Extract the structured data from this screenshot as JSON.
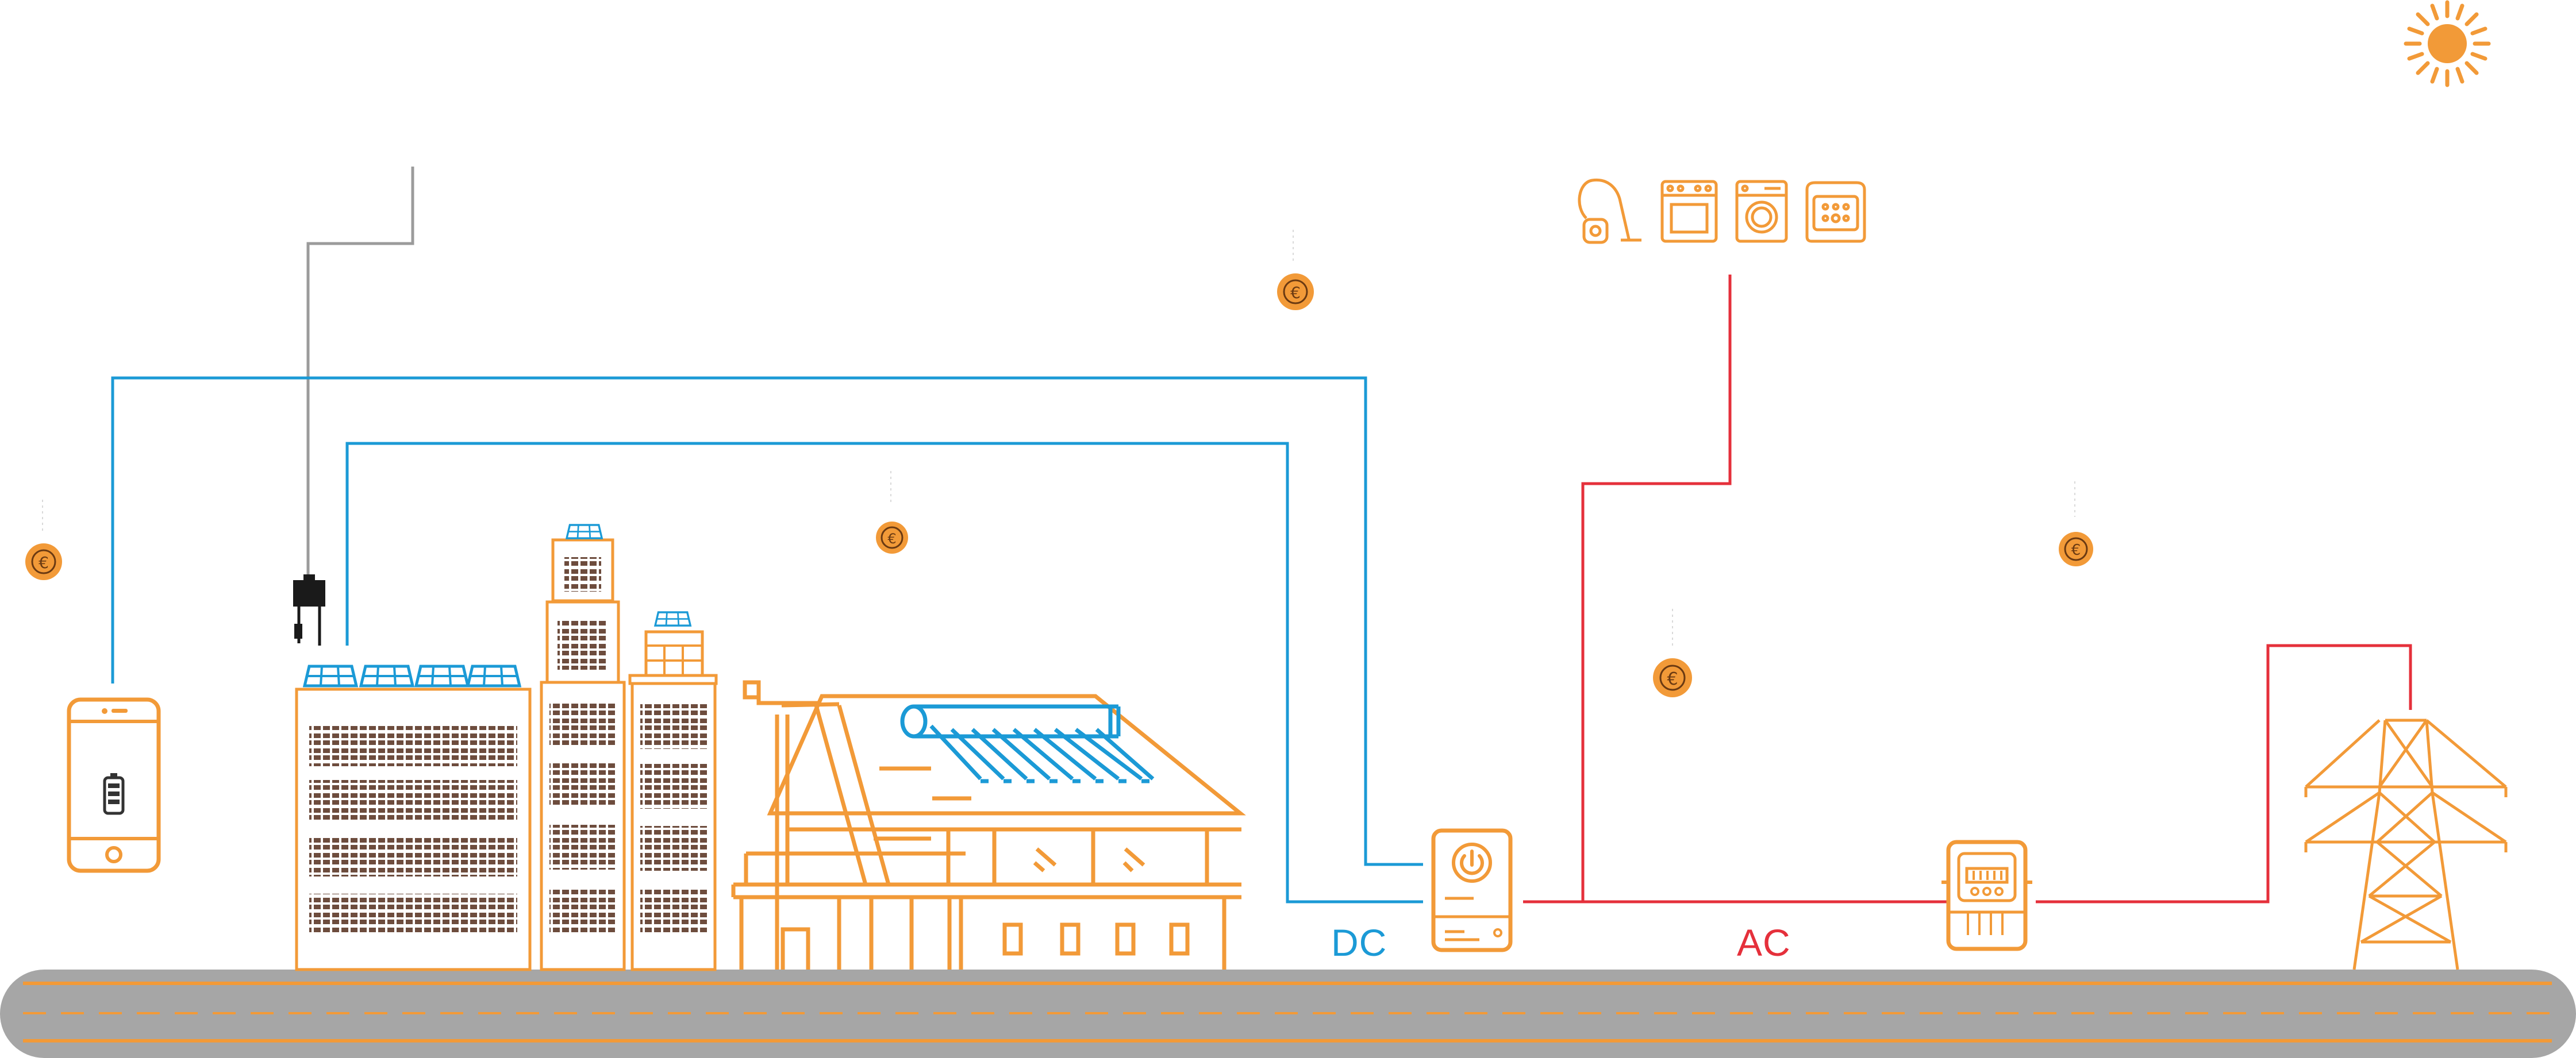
{
  "labels": {
    "dc": "DC",
    "ac": "AC"
  },
  "currency_symbol": "€",
  "colors": {
    "orange": "#f29a38",
    "dc_blue": "#1b9ad6",
    "ac_red": "#e5303b",
    "road": "#a6a6a6",
    "grey_wire": "#9b9b9b",
    "brick": "#6d4c3d",
    "panel_blue": "#1b9ad6",
    "dark": "#1a1a1a"
  },
  "icons": {
    "sun": "sun-icon",
    "coin": "euro-coin-icon",
    "phone": "smartphone-icon",
    "inverter": "inverter-icon",
    "meter": "electricity-meter-icon",
    "pylon": "power-pylon-icon",
    "microinverter": "microinverter-icon",
    "appliances": [
      "vacuum-cleaner-icon",
      "oven-icon",
      "washing-machine-icon",
      "bread-maker-icon"
    ]
  }
}
